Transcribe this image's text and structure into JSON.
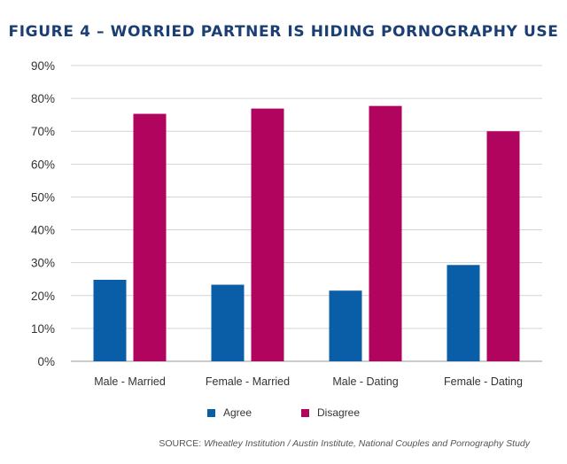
{
  "chart_data": {
    "type": "bar",
    "title": "FIGURE 4 – WORRIED PARTNER IS HIDING PORNOGRAPHY USE",
    "categories": [
      "Male - Married",
      "Female - Married",
      "Male - Dating",
      "Female - Dating"
    ],
    "series": [
      {
        "name": "Agree",
        "color": "#0a5ea8",
        "values": [
          24.8,
          23.3,
          21.5,
          29.3
        ]
      },
      {
        "name": "Disagree",
        "color": "#b0045e",
        "values": [
          75.3,
          76.9,
          77.7,
          70.0
        ]
      }
    ],
    "ylim": [
      0,
      90
    ],
    "yticks": [
      "0%",
      "10%",
      "20%",
      "30%",
      "40%",
      "50%",
      "60%",
      "70%",
      "80%",
      "90%"
    ],
    "xlabel": "",
    "ylabel": "",
    "grid": true,
    "legend": "bottom-center"
  },
  "source": {
    "label": "SOURCE:",
    "text": "Wheatley Institution / Austin Institute, National Couples and Pornography Study"
  }
}
